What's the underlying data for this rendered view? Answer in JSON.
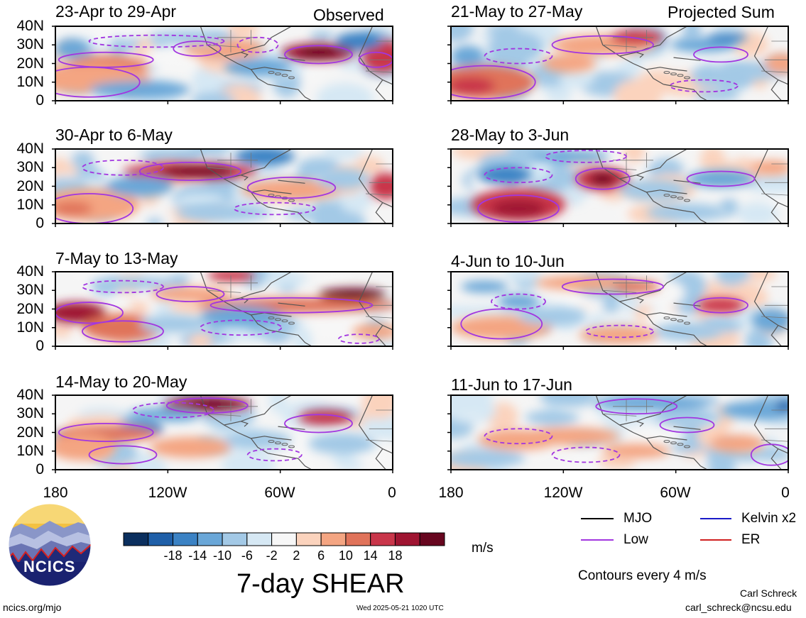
{
  "header": {
    "left_header": "Observed",
    "right_header": "Projected Sum"
  },
  "panels": [
    {
      "title": "23-Apr to 29-Apr"
    },
    {
      "title": "30-Apr to 6-May"
    },
    {
      "title": "7-May to 13-May"
    },
    {
      "title": "14-May to 20-May"
    },
    {
      "title": "21-May to 27-May"
    },
    {
      "title": "28-May to 3-Jun"
    },
    {
      "title": "4-Jun to 10-Jun"
    },
    {
      "title": "11-Jun to 17-Jun"
    }
  ],
  "chart_data": {
    "type": "heatmap",
    "title": "7-day SHEAR",
    "units": "m/s",
    "x_ticks": [
      "180",
      "120W",
      "60W",
      "0"
    ],
    "y_ticks": [
      "0",
      "10N",
      "20N",
      "30N",
      "40N"
    ],
    "xlim": [
      -180,
      0
    ],
    "ylim": [
      0,
      40
    ],
    "colorbar": {
      "ticks": [
        "-18",
        "-14",
        "-10",
        "-6",
        "-2",
        "2",
        "6",
        "10",
        "14",
        "18"
      ],
      "colors": [
        "#0b2f5e",
        "#1f5fa8",
        "#3b82c4",
        "#6aa7d8",
        "#a3c9e6",
        "#d6e8f4",
        "#f7f7f7",
        "#fbd3bd",
        "#f4a582",
        "#e0735a",
        "#c9364a",
        "#9f1431",
        "#67061f"
      ]
    },
    "contour_note": "Contours every 4 m/s",
    "legend": [
      {
        "label": "MJO",
        "color": "#000000"
      },
      {
        "label": "Kelvin x2",
        "color": "#1a1ac8"
      },
      {
        "label": "Low",
        "color": "#a236e0"
      },
      {
        "label": "ER",
        "color": "#d02020"
      }
    ]
  },
  "logo": {
    "text": "NCICS"
  },
  "footer": {
    "url": "ncics.org/mjo",
    "timestamp": "Wed 2025-05-21 1020 UTC",
    "author": "Carl Schreck",
    "email": "carl_schreck@ncsu.edu"
  }
}
